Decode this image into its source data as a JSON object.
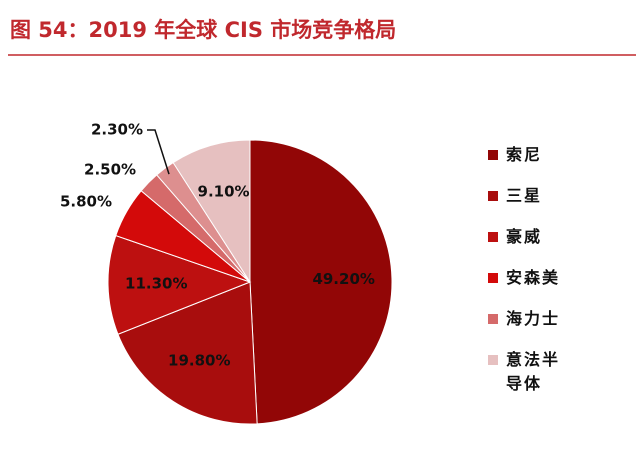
{
  "chart_data": {
    "type": "pie",
    "title": "图 54：2019 年全球 CIS 市场竞争格局",
    "categories": [
      "索尼",
      "三星",
      "豪威",
      "安森美",
      "海力士",
      null,
      "意法半导体"
    ],
    "values": [
      49.2,
      19.8,
      11.3,
      5.8,
      2.5,
      2.3,
      9.1
    ],
    "value_labels": [
      "49.20%",
      "19.80%",
      "11.30%",
      "5.80%",
      "2.50%",
      "2.30%",
      "9.10%"
    ],
    "colors": [
      "#920606",
      "#a80d0d",
      "#bd1010",
      "#d30a0a",
      "#d56a6a",
      "#dd8f8f",
      "#e6c0c0"
    ],
    "legend": "right"
  }
}
